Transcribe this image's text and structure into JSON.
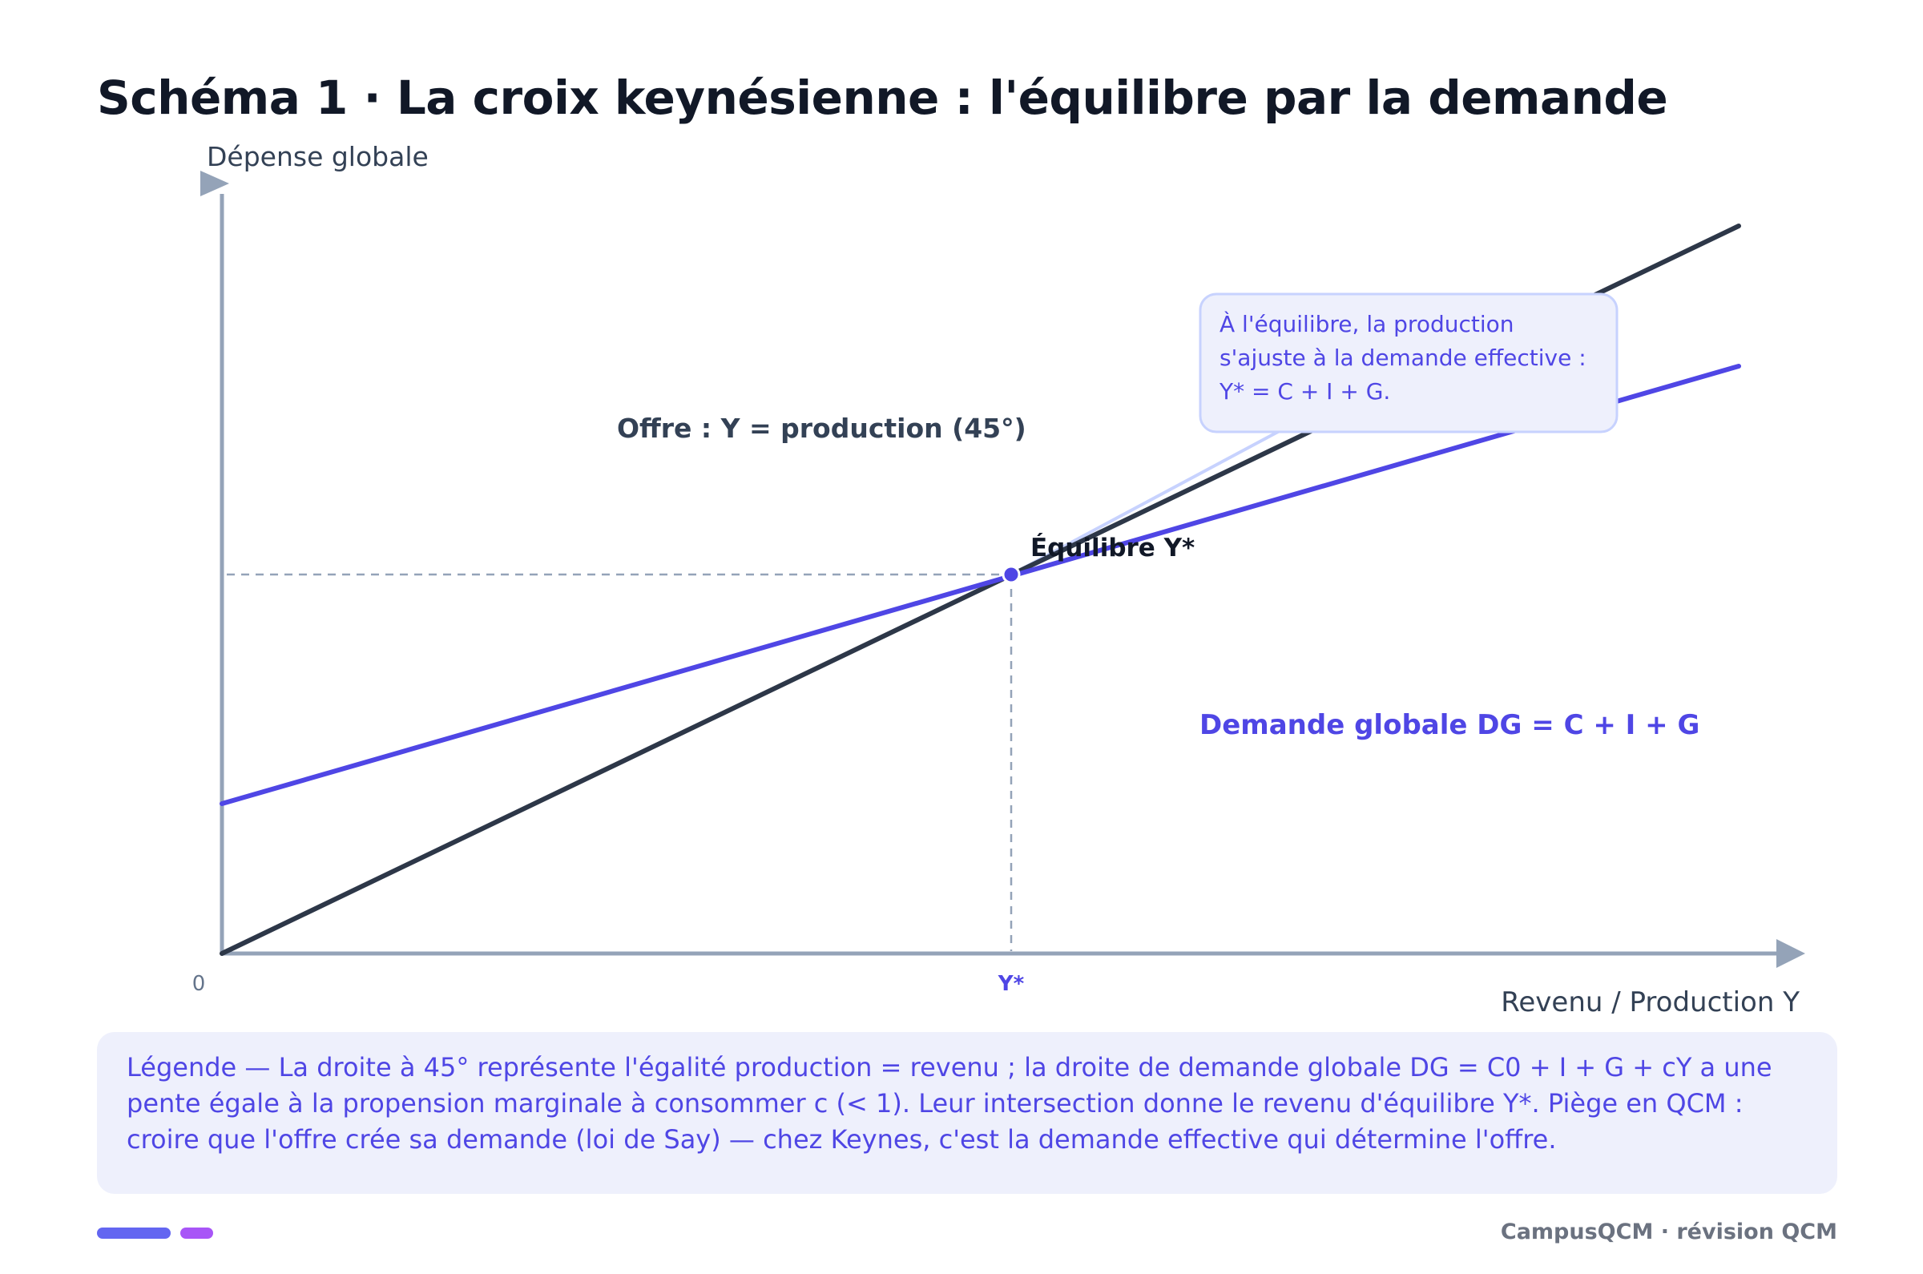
{
  "title": "Schéma 1 · La croix keynésienne : l'équilibre par la demande",
  "axes": {
    "y_label": "Dépense globale",
    "x_label": "Revenu / Production Y",
    "origin_label": "0",
    "y_star_label": "Y*"
  },
  "lines": {
    "offre_label": "Offre : Y = production (45°)",
    "demande_label": "Demande globale DG = C + I + G"
  },
  "equilibrium": {
    "label": "Équilibre Y*"
  },
  "callout": {
    "line1": "À l'équilibre, la production",
    "line2": "s'ajuste à la demande effective :",
    "line3": "Y* = C + I + G."
  },
  "legend": {
    "text": "Légende — La droite à 45° représente l'égalité production = revenu ; la droite de demande globale DG = C0 + I + G + cY a une\npente égale à la propension marginale à consommer c (< 1). Leur intersection donne le revenu d'équilibre Y*. Piège en QCM :\ncroire que l'offre crée sa demande (loi de Say) — chez Keynes, c'est la demande effective qui détermine l'offre."
  },
  "footer": {
    "credit": "CampusQCM · révision QCM"
  },
  "colors": {
    "offre": "#2d3748",
    "demande": "#4f46e5",
    "axis": "#94a3b8",
    "callout_bg": "#eef0fc",
    "callout_border": "#c7d2fe"
  }
}
